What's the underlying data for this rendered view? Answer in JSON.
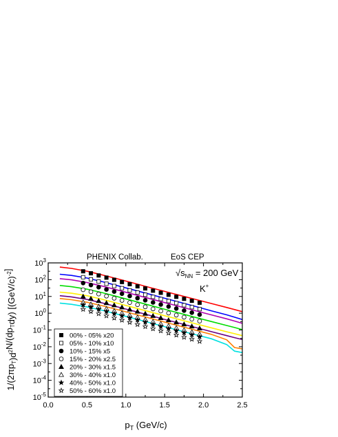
{
  "chart_data": {
    "type": "scatter",
    "xlabel": {
      "main": "p",
      "sub": "T",
      "rest": " (GeV/c)"
    },
    "ylabel": {
      "parts": [
        [
          "1/(2πp",
          "n"
        ],
        [
          "T",
          "sub"
        ],
        [
          ")d",
          "n"
        ],
        [
          "2",
          "sup"
        ],
        [
          "N/(dp",
          "n"
        ],
        [
          "T",
          "sub"
        ],
        [
          "dy) [(GeV/c)",
          "n"
        ],
        [
          "-2",
          "sup"
        ],
        [
          "]",
          "n"
        ]
      ]
    },
    "xlim": [
      0.0,
      2.5
    ],
    "ylim_log10": [
      -5,
      3
    ],
    "yscale": "log",
    "x_ticks": [
      "0.0",
      "0.5",
      "1.0",
      "1.5",
      "2.0",
      "2.5"
    ],
    "y_ticks": [
      {
        "base": "10",
        "exp": "3"
      },
      {
        "base": "10",
        "exp": "2"
      },
      {
        "base": "10",
        "exp": "1"
      },
      {
        "base": "10",
        "exp": "0"
      },
      {
        "base": "10",
        "exp": "-1"
      },
      {
        "base": "10",
        "exp": "-2"
      },
      {
        "base": "10",
        "exp": "-3"
      },
      {
        "base": "10",
        "exp": "-4"
      },
      {
        "base": "10",
        "exp": "-5"
      }
    ],
    "annotations": {
      "left_title": "PHENIX Collab.",
      "right_title": "EoS CEP",
      "energy": {
        "sqrt": "√",
        "s": "s",
        "sub": "NN",
        "rest": " = 200 GeV"
      },
      "particle": {
        "main": "K",
        "sup": "+"
      }
    },
    "legend_position": "bottom-left",
    "x": [
      0.45,
      0.55,
      0.65,
      0.75,
      0.85,
      0.95,
      1.05,
      1.15,
      1.25,
      1.35,
      1.45,
      1.55,
      1.65,
      1.75,
      1.85,
      1.95
    ],
    "series": [
      {
        "name": "00% - 05% x20",
        "marker": "square-filled",
        "values": [
          316,
          240,
          178,
          132,
          98,
          72,
          54,
          40,
          30,
          22,
          16.5,
          12.5,
          9.5,
          7.2,
          5.5,
          4.2
        ]
      },
      {
        "name": "05% - 10% x10",
        "marker": "square-open",
        "values": [
          140,
          104,
          77,
          57,
          42,
          31,
          23,
          17,
          12.6,
          9.4,
          7.0,
          5.3,
          4.0,
          3.0,
          2.3,
          1.75
        ]
      },
      {
        "name": "10% - 15% x5",
        "marker": "circle-filled",
        "values": [
          63,
          48,
          35.5,
          26,
          19.5,
          14.5,
          10.6,
          7.9,
          5.9,
          4.4,
          3.3,
          2.5,
          1.9,
          1.43,
          1.08,
          0.82
        ]
      },
      {
        "name": "15% - 20% x2.5",
        "marker": "circle-open",
        "values": [
          25,
          19,
          14,
          10.5,
          7.8,
          5.8,
          4.3,
          3.2,
          2.4,
          1.8,
          1.35,
          1.02,
          0.77,
          0.58,
          0.44,
          0.34
        ]
      },
      {
        "name": "20% - 30% x1.5",
        "marker": "triangle-filled",
        "values": [
          10,
          7.4,
          5.5,
          4.1,
          3.05,
          2.27,
          1.69,
          1.26,
          0.94,
          0.7,
          0.52,
          0.39,
          0.29,
          0.22,
          0.167,
          0.127
        ]
      },
      {
        "name": "30% - 40% x1.0",
        "marker": "triangle-open",
        "values": [
          4.5,
          3.4,
          2.5,
          1.85,
          1.37,
          1.02,
          0.76,
          0.57,
          0.42,
          0.315,
          0.235,
          0.176,
          0.132,
          0.099,
          0.075,
          0.057
        ]
      },
      {
        "name": "40% - 50% x1.0",
        "marker": "star-filled",
        "values": [
          3.1,
          2.3,
          1.7,
          1.26,
          0.94,
          0.7,
          0.52,
          0.39,
          0.29,
          0.215,
          0.16,
          0.12,
          0.09,
          0.068,
          0.051,
          0.039
        ]
      },
      {
        "name": "50% - 60% x1.0",
        "marker": "star-open",
        "values": [
          1.7,
          1.27,
          0.94,
          0.7,
          0.52,
          0.385,
          0.287,
          0.214,
          0.16,
          0.119,
          0.089,
          0.066,
          0.05,
          0.037,
          0.028,
          0.021
        ]
      }
    ],
    "curves": {
      "x": [
        0.15,
        0.3,
        0.5,
        0.7,
        0.9,
        1.1,
        1.3,
        1.5,
        1.7,
        1.9,
        2.1,
        2.3,
        2.4,
        2.5
      ],
      "lines": [
        {
          "color": "#ff0000",
          "values": [
            560,
            470,
            320,
            190,
            110,
            62,
            35,
            20,
            11.5,
            6.6,
            3.8,
            2.2,
            1.65,
            1.25
          ]
        },
        {
          "color": "#0000ff",
          "values": [
            210,
            180,
            125,
            75,
            43,
            24.5,
            13.8,
            7.8,
            4.4,
            2.5,
            1.4,
            0.8,
            0.58,
            0.42
          ]
        },
        {
          "color": "#b000b0",
          "values": [
            115,
            98,
            68,
            41,
            23.5,
            13.4,
            7.6,
            4.3,
            2.45,
            1.4,
            0.8,
            0.46,
            0.34,
            0.25
          ]
        },
        {
          "color": "#00dd00",
          "values": [
            45,
            38,
            27,
            16.5,
            9.5,
            5.4,
            3.05,
            1.72,
            0.98,
            0.56,
            0.32,
            0.185,
            0.14,
            0.105
          ]
        },
        {
          "color": "#ffee00",
          "values": [
            18,
            15.5,
            11,
            6.7,
            3.85,
            2.2,
            1.25,
            0.71,
            0.41,
            0.235,
            0.135,
            0.078,
            0.06,
            0.046
          ]
        },
        {
          "color": "#6a0080",
          "values": [
            11,
            9.4,
            6.6,
            4.05,
            2.35,
            1.34,
            0.76,
            0.43,
            0.245,
            0.14,
            0.08,
            0.046,
            0.035,
            0.027
          ]
        },
        {
          "color": "#ff8000",
          "values": [
            7.5,
            6.4,
            4.5,
            2.75,
            1.6,
            0.91,
            0.52,
            0.295,
            0.168,
            0.096,
            0.055,
            0.026,
            0.009,
            0.0075
          ]
        },
        {
          "color": "#00e0e0",
          "values": [
            4.0,
            3.4,
            2.4,
            1.47,
            0.85,
            0.49,
            0.28,
            0.159,
            0.09,
            0.052,
            0.03,
            0.0135,
            0.0055,
            0.0045
          ]
        }
      ]
    }
  }
}
